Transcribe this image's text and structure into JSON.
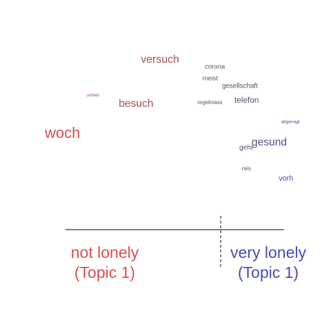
{
  "chart_data": {
    "type": "scatter",
    "title": "",
    "xlabel": "",
    "ylabel": "",
    "xlim": [
      0,
      1
    ],
    "ylim": [
      0,
      1
    ],
    "grid": false,
    "divider_x": 0.71,
    "colors": {
      "not_lonely": "#d94f4f",
      "very_lonely": "#4a4ab8",
      "neutral": "#555555",
      "axis": "#000000"
    },
    "words": [
      {
        "text": "versuch",
        "x": 0.39,
        "y": 0.93,
        "weight": 0.62,
        "lean": -0.45
      },
      {
        "text": "corona",
        "x": 0.65,
        "y": 0.89,
        "weight": 0.22,
        "lean": 0.05
      },
      {
        "text": "meist",
        "x": 0.64,
        "y": 0.81,
        "weight": 0.22,
        "lean": 0.05
      },
      {
        "text": "gesellschaft",
        "x": 0.72,
        "y": 0.76,
        "weight": 0.24,
        "lean": 0.05
      },
      {
        "text": "umfeld",
        "x": 0.17,
        "y": 0.7,
        "weight": 0.0,
        "lean": -0.45
      },
      {
        "text": "besuch",
        "x": 0.3,
        "y": 0.63,
        "weight": 0.6,
        "lean": -0.45
      },
      {
        "text": "regelmass",
        "x": 0.62,
        "y": 0.65,
        "weight": 0.12,
        "lean": 0.0
      },
      {
        "text": "telefon",
        "x": 0.77,
        "y": 0.66,
        "weight": 0.36,
        "lean": 0.2
      },
      {
        "text": "abgesagt",
        "x": 0.96,
        "y": 0.52,
        "weight": 0.03,
        "lean": 0.7
      },
      {
        "text": "woch",
        "x": 0.0,
        "y": 0.42,
        "weight": 1.0,
        "lean": -0.8
      },
      {
        "text": "gesund",
        "x": 0.84,
        "y": 0.37,
        "weight": 0.6,
        "lean": 0.45
      },
      {
        "text": "geht",
        "x": 0.79,
        "y": 0.34,
        "weight": 0.26,
        "lean": 0.25
      },
      {
        "text": "reis",
        "x": 0.8,
        "y": 0.2,
        "weight": 0.14,
        "lean": 0.25
      },
      {
        "text": "vorh",
        "x": 0.95,
        "y": 0.13,
        "weight": 0.3,
        "lean": 0.6
      }
    ],
    "groups": [
      {
        "line1": "not lonely",
        "line2": "(Topic 1)",
        "color": "#d94f4f"
      },
      {
        "line1": "very lonely",
        "line2": "(Topic 1)",
        "color": "#4a4ab8"
      }
    ]
  }
}
